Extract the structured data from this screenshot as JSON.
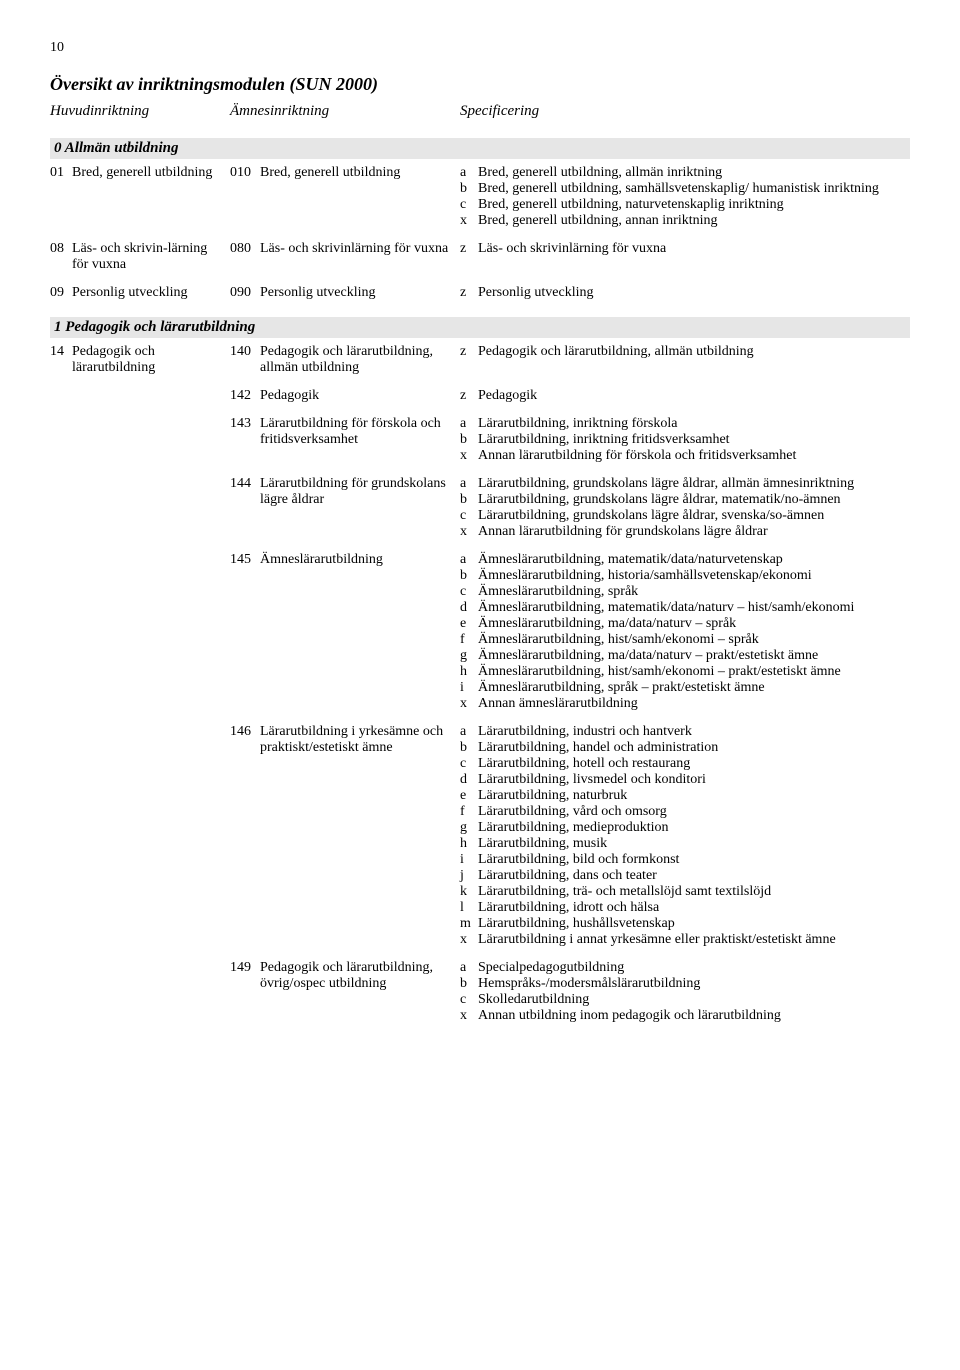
{
  "page_number": "10",
  "doc_title": "Översikt av inriktningsmodulen  (SUN 2000)",
  "column_headers": {
    "c1": "Huvudinriktning",
    "c2": "Ämnesinriktning",
    "c3": "Specificering"
  },
  "sections": [
    {
      "title": "0  Allmän utbildning",
      "rows": [
        {
          "c1_code": "01",
          "c1_label": "Bred, generell utbildning",
          "c2_code": "010",
          "c2_label": "Bred, generell utbildning",
          "specs": [
            {
              "l": "a",
              "t": "Bred, generell utbildning, allmän inriktning"
            },
            {
              "l": "b",
              "t": "Bred, generell utbildning, samhällsvetenskaplig/ humanistisk inriktning"
            },
            {
              "l": "c",
              "t": "Bred, generell utbildning, naturvetenskaplig inriktning"
            },
            {
              "l": "x",
              "t": "Bred, generell utbildning, annan inriktning"
            }
          ]
        },
        {
          "c1_code": "08",
          "c1_label": "Läs- och skrivin-lärning för vuxna",
          "c2_code": "080",
          "c2_label": "Läs- och skrivinlärning för vuxna",
          "specs": [
            {
              "l": "z",
              "t": "Läs- och skrivinlärning för vuxna"
            }
          ]
        },
        {
          "c1_code": "09",
          "c1_label": "Personlig utveckling",
          "c2_code": "090",
          "c2_label": "Personlig utveckling",
          "specs": [
            {
              "l": "z",
              "t": "Personlig utveckling"
            }
          ]
        }
      ]
    },
    {
      "title": "1  Pedagogik och lärarutbildning",
      "rows": [
        {
          "c1_code": "14",
          "c1_label": "Pedagogik och lärarutbildning",
          "c2_code": "140",
          "c2_label": "Pedagogik och lärarutbildning, allmän utbildning",
          "specs": [
            {
              "l": "z",
              "t": "Pedagogik och lärarutbildning, allmän utbildning"
            }
          ]
        },
        {
          "c1_code": "",
          "c1_label": "",
          "c2_code": "142",
          "c2_label": "Pedagogik",
          "specs": [
            {
              "l": "z",
              "t": "Pedagogik"
            }
          ]
        },
        {
          "c1_code": "",
          "c1_label": "",
          "c2_code": "143",
          "c2_label": "Lärarutbildning för förskola och fritidsverksamhet",
          "specs": [
            {
              "l": "a",
              "t": "Lärarutbildning, inriktning förskola"
            },
            {
              "l": "b",
              "t": "Lärarutbildning, inriktning fritidsverksamhet"
            },
            {
              "l": "x",
              "t": "Annan lärarutbildning för förskola och fritidsverksamhet"
            }
          ]
        },
        {
          "c1_code": "",
          "c1_label": "",
          "c2_code": "144",
          "c2_label": "Lärarutbildning för grundskolans lägre åldrar",
          "specs": [
            {
              "l": "a",
              "t": "Lärarutbildning, grundskolans lägre åldrar, allmän ämnesinriktning"
            },
            {
              "l": "b",
              "t": "Lärarutbildning, grundskolans lägre åldrar, matematik/no-ämnen"
            },
            {
              "l": "c",
              "t": "Lärarutbildning, grundskolans lägre åldrar, svenska/so-ämnen"
            },
            {
              "l": "x",
              "t": "Annan lärarutbildning för grundskolans lägre åldrar"
            }
          ]
        },
        {
          "c1_code": "",
          "c1_label": "",
          "c2_code": "145",
          "c2_label": "Ämneslärarutbildning",
          "specs": [
            {
              "l": "a",
              "t": "Ämneslärarutbildning, matematik/data/naturvetenskap"
            },
            {
              "l": "b",
              "t": "Ämneslärarutbildning, historia/samhällsvetenskap/ekonomi"
            },
            {
              "l": "c",
              "t": "Ämneslärarutbildning, språk"
            },
            {
              "l": "d",
              "t": "Ämneslärarutbildning, matematik/data/naturv – hist/samh/ekonomi"
            },
            {
              "l": "e",
              "t": "Ämneslärarutbildning, ma/data/naturv – språk"
            },
            {
              "l": "f",
              "t": "Ämneslärarutbildning, hist/samh/ekonomi – språk"
            },
            {
              "l": "g",
              "t": "Ämneslärarutbildning, ma/data/naturv – prakt/estetiskt ämne"
            },
            {
              "l": "h",
              "t": "Ämneslärarutbildning, hist/samh/ekonomi – prakt/estetiskt ämne"
            },
            {
              "l": "i",
              "t": "Ämneslärarutbildning, språk – prakt/estetiskt ämne"
            },
            {
              "l": "x",
              "t": "Annan ämneslärarutbildning"
            }
          ]
        },
        {
          "c1_code": "",
          "c1_label": "",
          "c2_code": "146",
          "c2_label": "Lärarutbildning i yrkesämne och praktiskt/estetiskt ämne",
          "specs": [
            {
              "l": "a",
              "t": "Lärarutbildning, industri och hantverk"
            },
            {
              "l": "b",
              "t": "Lärarutbildning, handel och administration"
            },
            {
              "l": "c",
              "t": "Lärarutbildning, hotell och restaurang"
            },
            {
              "l": "d",
              "t": "Lärarutbildning, livsmedel och konditori"
            },
            {
              "l": "e",
              "t": "Lärarutbildning, naturbruk"
            },
            {
              "l": "f",
              "t": "Lärarutbildning, vård och omsorg"
            },
            {
              "l": "g",
              "t": "Lärarutbildning, medieproduktion"
            },
            {
              "l": "h",
              "t": "Lärarutbildning, musik"
            },
            {
              "l": "i",
              "t": "Lärarutbildning, bild och formkonst"
            },
            {
              "l": "j",
              "t": "Lärarutbildning, dans och teater"
            },
            {
              "l": "k",
              "t": "Lärarutbildning, trä- och metallslöjd samt textilslöjd"
            },
            {
              "l": "l",
              "t": "Lärarutbildning, idrott och hälsa"
            },
            {
              "l": "m",
              "t": "Lärarutbildning, hushållsvetenskap"
            },
            {
              "l": "x",
              "t": "Lärarutbildning i annat yrkesämne eller praktiskt/estetiskt ämne"
            }
          ]
        },
        {
          "c1_code": "",
          "c1_label": "",
          "c2_code": "149",
          "c2_label": "Pedagogik och lärarutbildning, övrig/ospec utbildning",
          "specs": [
            {
              "l": "a",
              "t": "Specialpedagogutbildning"
            },
            {
              "l": "b",
              "t": "Hemspråks-/modersmålslärarutbildning"
            },
            {
              "l": "c",
              "t": "Skolledarutbildning"
            },
            {
              "l": "x",
              "t": "Annan utbildning inom pedagogik och lärarutbildning"
            }
          ]
        }
      ]
    }
  ]
}
